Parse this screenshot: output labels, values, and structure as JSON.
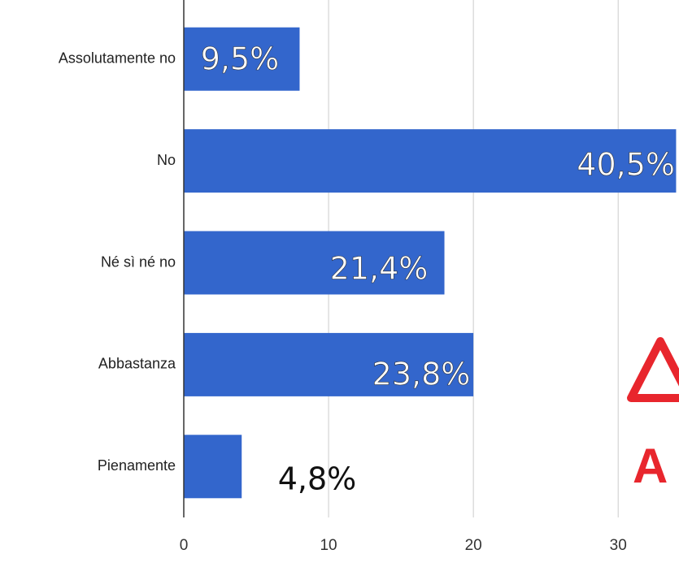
{
  "chart_data": {
    "type": "bar",
    "orientation": "horizontal",
    "categories": [
      "Assolutamente no",
      "No",
      "Né sì né no",
      "Abbastanza",
      "Pienamente"
    ],
    "values": [
      8,
      34,
      18,
      20,
      4
    ],
    "annotations": [
      "9,5%",
      "40,5%",
      "21,4%",
      "23,8%",
      "4,8%"
    ],
    "color": "#3366cc",
    "xlim": [
      0,
      34.2
    ],
    "xticks": [
      0,
      10,
      20,
      30
    ],
    "grid": true,
    "watermark": "A"
  }
}
